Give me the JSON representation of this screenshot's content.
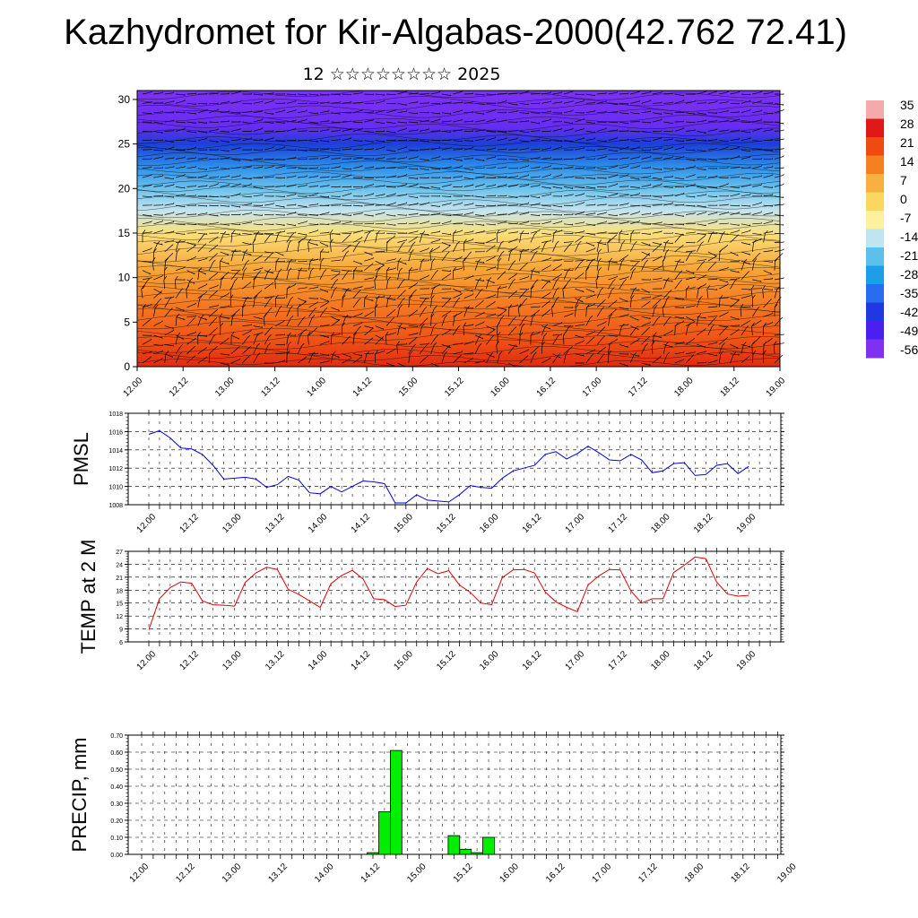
{
  "header": {
    "title": "Kazhydromet for Kir-Algabas-2000(42.762 72.41)",
    "subtitle": "12 ☆☆☆☆☆☆☆☆ 2025"
  },
  "time_ticks": [
    "12.00",
    "12.12",
    "13.00",
    "13.12",
    "14.00",
    "14.12",
    "15.00",
    "15.12",
    "16.00",
    "16.12",
    "17.00",
    "17.12",
    "18.00",
    "18.12",
    "19.00"
  ],
  "chart_data": [
    {
      "id": "cross_section",
      "type": "heatmap",
      "description": "Temperature vertical cross-section with wind barbs",
      "x_categories": [
        "12.00",
        "12.12",
        "13.00",
        "13.12",
        "14.00",
        "14.12",
        "15.00",
        "15.12",
        "16.00",
        "16.12",
        "17.00",
        "17.12",
        "18.00",
        "18.12",
        "19.00"
      ],
      "y_ticks": [
        0,
        5,
        10,
        15,
        20,
        25,
        30
      ],
      "ylim": [
        0,
        31
      ],
      "colorbar": {
        "labels": [
          "35",
          "28",
          "21",
          "14",
          "7",
          "0",
          "-7",
          "-14",
          "-21",
          "-28",
          "-35",
          "-42",
          "-49",
          "-56"
        ],
        "colors": [
          "#f4aaaa",
          "#e01818",
          "#f04a10",
          "#f58020",
          "#f8b040",
          "#fad860",
          "#fff0a0",
          "#bfe6f0",
          "#5cc0ea",
          "#1c9ee8",
          "#2a6cf0",
          "#2038e0",
          "#4a20f0",
          "#8030f0"
        ]
      },
      "levels": [
        {
          "y": 0,
          "color": "#e22a10"
        },
        {
          "y": 3,
          "color": "#ee5316"
        },
        {
          "y": 7,
          "color": "#f47a22"
        },
        {
          "y": 11,
          "color": "#f7a638"
        },
        {
          "y": 15,
          "color": "#fbe07a"
        },
        {
          "y": 17.5,
          "color": "#c5e4ee"
        },
        {
          "y": 20,
          "color": "#6ac2ec"
        },
        {
          "y": 22.5,
          "color": "#2d8de8"
        },
        {
          "y": 25,
          "color": "#1c3fd8"
        },
        {
          "y": 27,
          "color": "#6a2cf2"
        },
        {
          "y": 31,
          "color": "#7d32f4"
        }
      ]
    },
    {
      "id": "pmsl",
      "type": "line",
      "ylabel": "PMSL",
      "ylim": [
        1008,
        1018
      ],
      "y_ticks": [
        1008,
        1010,
        1012,
        1014,
        1016,
        1018
      ],
      "x_step_hours": 3,
      "series": [
        {
          "color": "#0000e0",
          "values": [
            1015.7,
            1016.1,
            1015.3,
            1014.2,
            1014.1,
            1013.5,
            1012.3,
            1010.8,
            1010.9,
            1011.0,
            1010.8,
            1009.9,
            1010.2,
            1011.1,
            1010.7,
            1009.3,
            1009.2,
            1010.0,
            1009.4,
            1010.0,
            1010.6,
            1010.5,
            1010.3,
            1008.2,
            1008.2,
            1009.1,
            1008.5,
            1008.4,
            1008.3,
            1009.1,
            1010.1,
            1009.9,
            1009.8,
            1010.9,
            1011.7,
            1012.0,
            1012.3,
            1013.5,
            1013.8,
            1013.0,
            1013.6,
            1014.4,
            1013.7,
            1012.9,
            1012.8,
            1013.5,
            1012.9,
            1011.5,
            1011.7,
            1012.5,
            1012.6,
            1011.2,
            1011.3,
            1012.3,
            1012.5,
            1011.4,
            1012.2
          ]
        }
      ]
    },
    {
      "id": "temp2m",
      "type": "line",
      "ylabel": "TEMP at 2 M",
      "ylim": [
        6,
        27
      ],
      "y_ticks": [
        6,
        9,
        12,
        15,
        18,
        21,
        24,
        27
      ],
      "x_step_hours": 3,
      "series": [
        {
          "color": "#e00000",
          "values": [
            8.8,
            16.0,
            18.6,
            19.9,
            19.6,
            15.5,
            14.6,
            14.5,
            14.3,
            19.8,
            22.0,
            23.3,
            22.8,
            18.2,
            17.0,
            15.5,
            14.0,
            19.5,
            21.4,
            22.6,
            20.6,
            16.0,
            15.8,
            14.2,
            14.5,
            19.9,
            23.0,
            21.8,
            22.5,
            19.2,
            17.5,
            15.0,
            14.6,
            20.9,
            22.7,
            22.8,
            22.0,
            17.6,
            15.3,
            14.0,
            13.0,
            19.2,
            21.3,
            22.8,
            22.7,
            17.8,
            15.0,
            16.0,
            16.0,
            22.1,
            23.8,
            25.7,
            25.3,
            19.9,
            17.1,
            16.6,
            16.8
          ]
        }
      ]
    },
    {
      "id": "precip",
      "type": "bar",
      "ylabel": "PRECIP, mm",
      "ylim": [
        0,
        0.7
      ],
      "y_ticks": [
        "0.00",
        "0.10",
        "0.20",
        "0.30",
        "0.40",
        "0.50",
        "0.60",
        "0.70"
      ],
      "x_step_hours": 3,
      "bar_color": "#00ee00",
      "bars": [
        {
          "step": 20,
          "value": 0.01
        },
        {
          "step": 21,
          "value": 0.25
        },
        {
          "step": 22,
          "value": 0.61
        },
        {
          "step": 27,
          "value": 0.11
        },
        {
          "step": 28,
          "value": 0.03
        },
        {
          "step": 29,
          "value": 0.01
        },
        {
          "step": 30,
          "value": 0.1
        }
      ]
    }
  ]
}
